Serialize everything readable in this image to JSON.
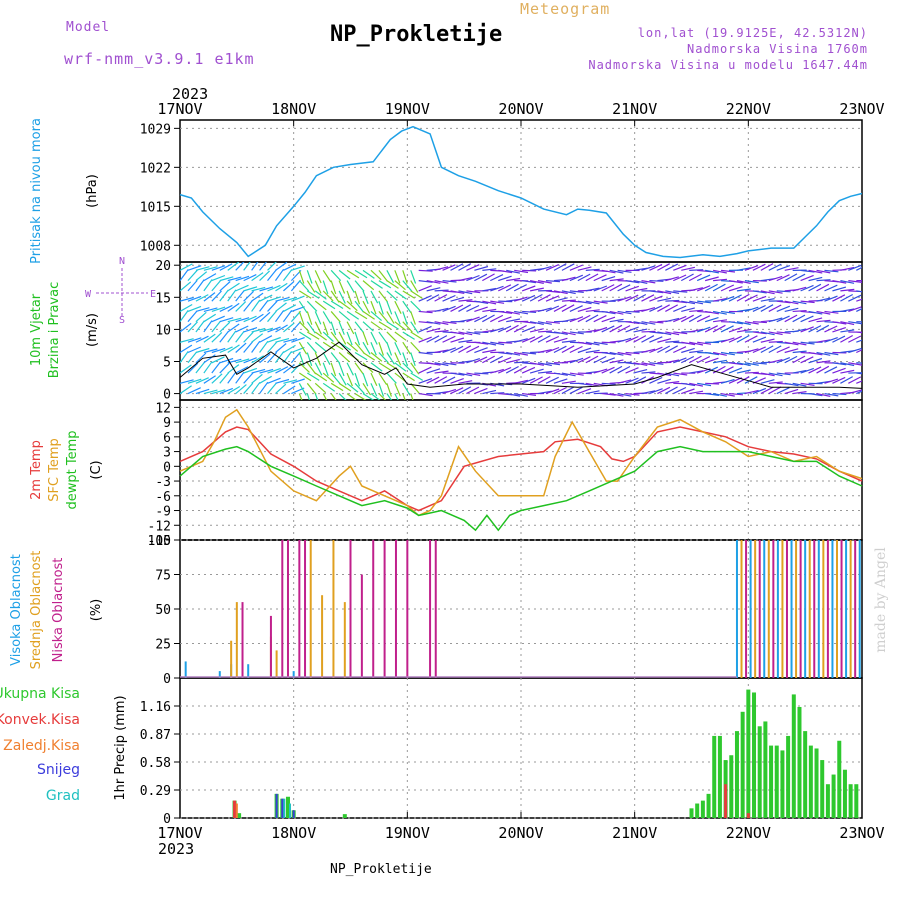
{
  "header": {
    "model_label": "Model",
    "model_name": "wrf-nmm_v3.9.1 e1km",
    "product": "Meteogram",
    "title": "NP_Prokletije",
    "coords": "lon,lat (19.9125E, 42.5312N)",
    "altitude": "Nadmorska Visina 1760m",
    "model_altitude": "Nadmorska Visina u modelu 1647.44m"
  },
  "footer": {
    "station": "NP_Prokletije",
    "credit": "made by Angel"
  },
  "colors": {
    "pressure": "#1ea0e6",
    "wind_bg1": "#1edcdc",
    "wind_bg2": "#7820dc",
    "temp2m": "#e63c3c",
    "sfc": "#e0a020",
    "dewpt": "#20c020",
    "cloud_high": "#1ea0e6",
    "cloud_mid": "#e0a020",
    "cloud_low": "#c0208c",
    "precip_total": "#2ec82e",
    "precip_conv": "#e63c3c",
    "precip_frozen": "#f08030",
    "precip_snow": "#3c3cdc",
    "precip_graupel": "#20c0c0",
    "model_color": "#a050d0"
  },
  "chart_data": [
    {
      "type": "line",
      "panel": "pressure",
      "ylabel_lines": [
        "Pritisak na nivou mora"
      ],
      "unit": "(hPa)",
      "x_ticks": [
        "17NOV",
        "18NOV",
        "19NOV",
        "20NOV",
        "21NOV",
        "22NOV",
        "23NOV"
      ],
      "x_year": "2023",
      "y_ticks": [
        1008,
        1015,
        1022,
        1029
      ],
      "ylim": [
        1005,
        1030.5
      ],
      "series": [
        {
          "name": "Pritisak na nivou mora",
          "x": [
            0,
            0.1,
            0.2,
            0.35,
            0.5,
            0.6,
            0.75,
            0.85,
            1.0,
            1.1,
            1.2,
            1.35,
            1.5,
            1.7,
            1.85,
            1.95,
            2.05,
            2.2,
            2.3,
            2.45,
            2.6,
            2.8,
            3.0,
            3.2,
            3.4,
            3.5,
            3.6,
            3.75,
            3.9,
            4.0,
            4.1,
            4.25,
            4.4,
            4.6,
            4.75,
            4.9,
            5.0,
            5.2,
            5.4,
            5.5,
            5.6,
            5.7,
            5.8,
            5.9,
            6.0
          ],
          "y": [
            1017.1,
            1016.5,
            1014.0,
            1011.0,
            1008.5,
            1006.0,
            1008.0,
            1011.5,
            1015.0,
            1017.5,
            1020.5,
            1022.0,
            1022.5,
            1023.0,
            1027.0,
            1028.5,
            1029.3,
            1028.0,
            1022.0,
            1020.5,
            1019.5,
            1017.8,
            1016.5,
            1014.5,
            1013.5,
            1014.5,
            1014.3,
            1013.8,
            1010.0,
            1008.0,
            1006.7,
            1006.0,
            1005.8,
            1006.3,
            1006.0,
            1006.5,
            1007.0,
            1007.5,
            1007.5,
            1009.5,
            1011.5,
            1014.0,
            1016.0,
            1016.8,
            1017.3
          ]
        }
      ]
    },
    {
      "type": "line",
      "panel": "wind",
      "ylabel_lines": [
        "10m Vjetar",
        "Brzina i Pravac"
      ],
      "unit": "(m/s)",
      "compass": [
        "N",
        "S",
        "E",
        "W"
      ],
      "y_ticks": [
        0,
        5,
        10,
        15,
        20
      ],
      "ylim": [
        -1,
        20.5
      ],
      "series": [
        {
          "name": "10m Vjetar",
          "x": [
            0,
            0.2,
            0.4,
            0.5,
            0.6,
            0.8,
            1.0,
            1.2,
            1.4,
            1.6,
            1.8,
            1.9,
            2.0,
            2.2,
            2.5,
            3.0,
            3.5,
            4.0,
            4.2,
            4.5,
            4.8,
            5.0,
            5.2,
            5.5,
            5.8,
            6.0
          ],
          "y": [
            2.5,
            5.5,
            6.0,
            3.0,
            4.0,
            6.5,
            4.0,
            5.5,
            8.0,
            4.5,
            3.0,
            4.0,
            1.5,
            1.0,
            1.5,
            1.5,
            1.0,
            1.5,
            2.5,
            4.5,
            3.0,
            2.0,
            1.0,
            1.0,
            1.0,
            0.8
          ]
        }
      ]
    },
    {
      "type": "line",
      "panel": "temperature",
      "ylabel_lines": [
        "2m Temp",
        "SFC Temp",
        "dewpt Temp"
      ],
      "unit": "(C)",
      "y_ticks": [
        12,
        9,
        6,
        3,
        0,
        -3,
        -6,
        -9,
        -12,
        -15
      ],
      "ylim": [
        -15,
        13.5
      ],
      "series": [
        {
          "name": "2m Temp",
          "x": [
            0,
            0.2,
            0.4,
            0.5,
            0.6,
            0.8,
            1.0,
            1.2,
            1.4,
            1.6,
            1.8,
            2.0,
            2.1,
            2.2,
            2.3,
            2.5,
            2.8,
            3.0,
            3.2,
            3.3,
            3.5,
            3.7,
            3.8,
            3.9,
            4.0,
            4.2,
            4.4,
            4.6,
            4.8,
            5.0,
            5.2,
            5.4,
            5.6,
            5.8,
            6.0
          ],
          "y": [
            1,
            3,
            7,
            8,
            7.5,
            2.5,
            0,
            -3,
            -5,
            -7,
            -5,
            -8,
            -9,
            -8,
            -7,
            0,
            2,
            2.5,
            3,
            5,
            5.5,
            4,
            1.5,
            1,
            2,
            7,
            8,
            7,
            6,
            4,
            3,
            2.5,
            1.5,
            -1,
            -3
          ]
        },
        {
          "name": "SFC Temp",
          "x": [
            0,
            0.2,
            0.3,
            0.4,
            0.5,
            0.6,
            0.8,
            1.0,
            1.2,
            1.4,
            1.5,
            1.6,
            1.8,
            1.9,
            2.0,
            2.1,
            2.2,
            2.3,
            2.45,
            2.6,
            2.8,
            3.0,
            3.2,
            3.3,
            3.45,
            3.6,
            3.75,
            3.85,
            4.0,
            4.2,
            4.4,
            4.6,
            4.8,
            5.0,
            5.2,
            5.4,
            5.6,
            5.8,
            6.0
          ],
          "y": [
            -1,
            1,
            5,
            10,
            11.5,
            8,
            -1,
            -5,
            -7,
            -2,
            0,
            -4,
            -6,
            -7,
            -8,
            -10,
            -9,
            -6,
            4,
            -1,
            -6,
            -6,
            -6,
            2,
            9,
            3,
            -3,
            -3,
            2,
            8,
            9.5,
            7,
            5,
            2,
            3,
            1,
            2,
            -1,
            -2.5
          ]
        },
        {
          "name": "dewpt Temp",
          "x": [
            0,
            0.2,
            0.4,
            0.5,
            0.6,
            0.8,
            1.0,
            1.2,
            1.4,
            1.6,
            1.8,
            2.0,
            2.1,
            2.2,
            2.3,
            2.5,
            2.6,
            2.7,
            2.8,
            2.9,
            3.0,
            3.2,
            3.4,
            3.6,
            3.8,
            4.0,
            4.2,
            4.4,
            4.6,
            4.8,
            5.0,
            5.2,
            5.4,
            5.6,
            5.8,
            6.0
          ],
          "y": [
            -2,
            2,
            3.5,
            4,
            3,
            0,
            -2,
            -4,
            -6,
            -8,
            -7,
            -8.5,
            -10,
            -9.5,
            -9,
            -11,
            -13,
            -10,
            -13,
            -10,
            -9,
            -8,
            -7,
            -5,
            -3,
            -1,
            3,
            4,
            3,
            3,
            3,
            2,
            1,
            1,
            -2,
            -4
          ]
        }
      ]
    },
    {
      "type": "bar",
      "panel": "clouds",
      "ylabel_lines": [
        "Visoka Oblacnost",
        "Srednja Oblacnost",
        "Niska Oblacnost"
      ],
      "unit": "(%)",
      "y_ticks": [
        0,
        25,
        50,
        75,
        100
      ],
      "ylim": [
        0,
        100
      ],
      "series": [
        {
          "name": "Visoka Oblacnost",
          "x": [
            0.05,
            0.35,
            0.45,
            0.6,
            1.0,
            2.0,
            4.9,
            5.0,
            5.5,
            6.0
          ],
          "values": [
            12,
            5,
            10,
            10,
            5,
            0,
            100,
            100,
            100,
            100
          ]
        },
        {
          "name": "Srednja Oblacnost",
          "x": [
            0.45,
            0.5,
            0.8,
            0.85,
            1.15,
            1.25,
            1.35,
            1.45
          ],
          "values": [
            27,
            55,
            30,
            20,
            100,
            60,
            100,
            55
          ]
        },
        {
          "name": "Niska Oblacnost",
          "x": [
            0.55,
            0.8,
            0.9,
            0.95,
            1.05,
            1.1,
            1.5,
            1.6,
            1.7,
            1.8,
            1.9,
            2.0,
            2.2,
            2.25
          ],
          "values": [
            55,
            45,
            100,
            100,
            100,
            100,
            100,
            75,
            100,
            100,
            100,
            100,
            100,
            100
          ]
        }
      ],
      "dense_region": {
        "from": 4.9,
        "to": 6.0,
        "value": 100
      }
    },
    {
      "type": "bar",
      "panel": "precipitation",
      "ylabel_lines": [
        "Ukupna Kisa",
        "Konvek.Kisa",
        "Zaledj.Kisa",
        "Snijeg",
        "Grad"
      ],
      "unit": "1hr Precip (mm)",
      "y_ticks": [
        0,
        0.29,
        0.58,
        0.87,
        1.16
      ],
      "ylim": [
        0,
        1.45
      ],
      "series": [
        {
          "name": "Ukupna Kisa",
          "x": [
            0.48,
            0.52,
            0.85,
            0.9,
            0.95,
            1.0,
            1.45,
            4.5,
            4.55,
            4.6,
            4.65,
            4.7,
            4.75,
            4.8,
            4.85,
            4.9,
            4.95,
            5.0,
            5.05,
            5.1,
            5.15,
            5.2,
            5.25,
            5.3,
            5.35,
            5.4,
            5.45,
            5.5,
            5.55,
            5.6,
            5.65,
            5.7,
            5.75,
            5.8,
            5.85,
            5.9,
            5.95
          ],
          "values": [
            0.18,
            0.05,
            0.25,
            0.2,
            0.22,
            0.08,
            0.04,
            0.1,
            0.15,
            0.18,
            0.25,
            0.85,
            0.85,
            0.6,
            0.65,
            0.9,
            1.1,
            1.33,
            1.3,
            0.95,
            1.0,
            0.75,
            0.75,
            0.7,
            0.85,
            1.28,
            1.15,
            0.9,
            0.75,
            0.72,
            0.6,
            0.35,
            0.45,
            0.8,
            0.5,
            0.35,
            0.35
          ]
        },
        {
          "name": "Konvek.Kisa",
          "x": [
            0.48,
            4.8,
            5.0
          ],
          "values": [
            0.18,
            0.35,
            0.05
          ]
        },
        {
          "name": "Zaledj.Kisa",
          "x": [
            0.5
          ],
          "values": [
            0.15
          ]
        },
        {
          "name": "Snijeg",
          "x": [
            0.85,
            0.9,
            1.0
          ],
          "values": [
            0.25,
            0.2,
            0.08
          ]
        },
        {
          "name": "Grad",
          "x": [
            0.9,
            0.95
          ],
          "values": [
            0.2,
            0.15
          ]
        }
      ]
    }
  ]
}
